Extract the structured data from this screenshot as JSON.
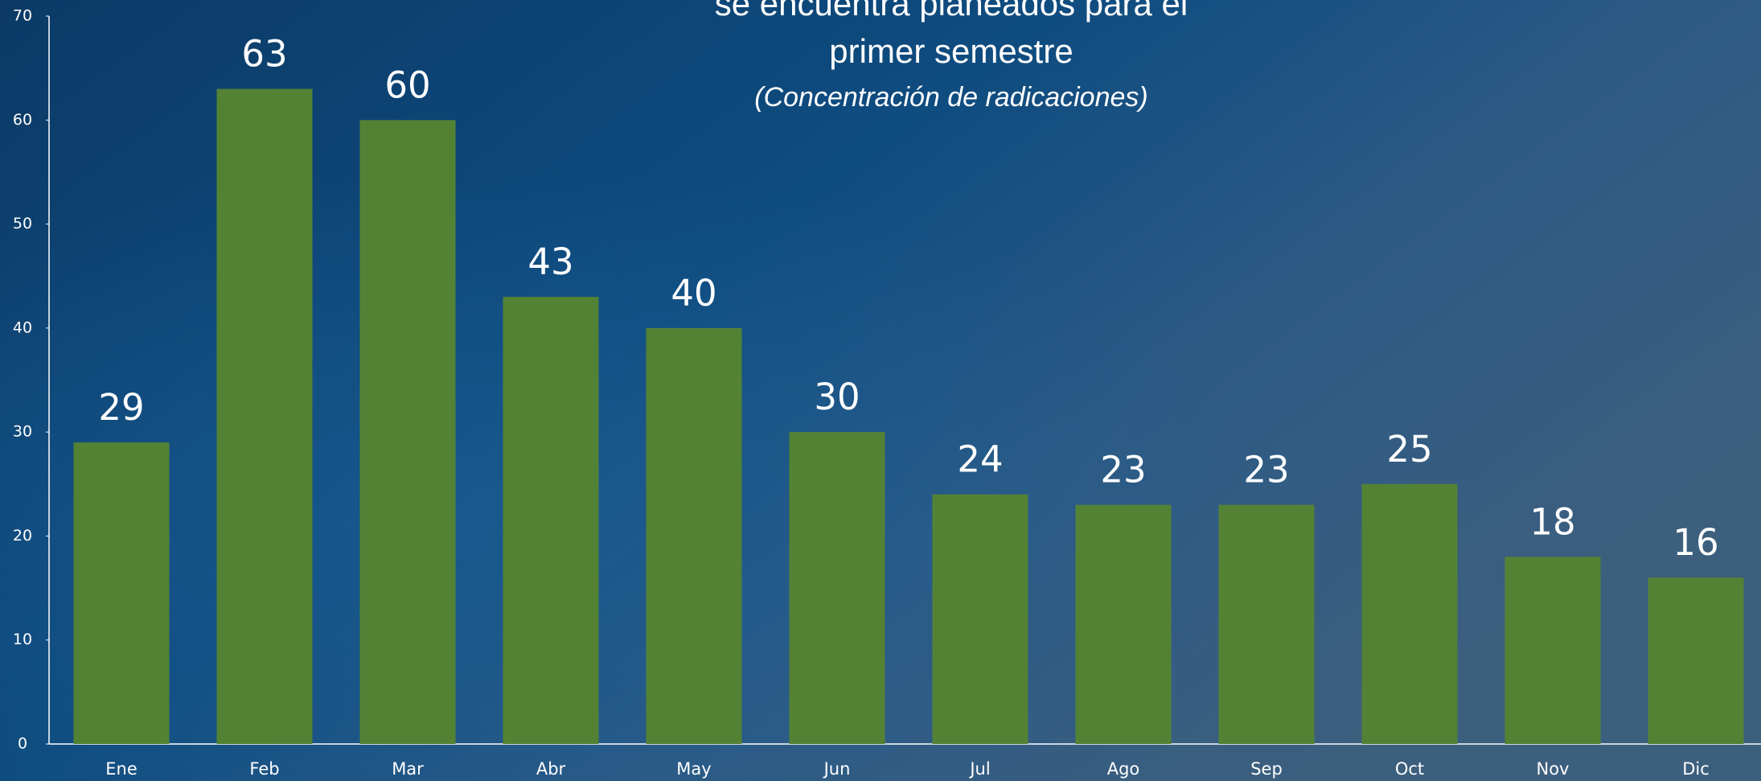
{
  "chart_data": {
    "type": "bar",
    "title_lines": [
      "se encuentra planeados para el",
      "primer semestre"
    ],
    "subtitle": "(Concentración de radicaciones)",
    "categories": [
      "Ene",
      "Feb",
      "Mar",
      "Abr",
      "May",
      "Jun",
      "Jul",
      "Ago",
      "Sep",
      "Oct",
      "Nov",
      "Dic"
    ],
    "values": [
      29,
      63,
      60,
      43,
      40,
      30,
      24,
      23,
      23,
      25,
      18,
      16
    ],
    "color": "#548235",
    "ylim": [
      0,
      70
    ],
    "yticks": [
      0,
      10,
      20,
      30,
      40,
      50,
      60,
      70
    ],
    "grid": false
  }
}
